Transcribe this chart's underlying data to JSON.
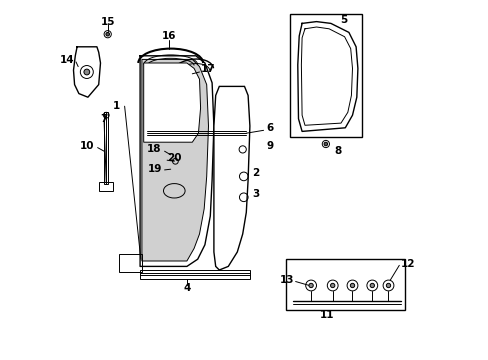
{
  "background_color": "#ffffff",
  "line_color": "#000000",
  "figure_width": 4.89,
  "figure_height": 3.6,
  "dpi": 100,
  "label_fontsize": 7.5,
  "label_color": "#000000"
}
